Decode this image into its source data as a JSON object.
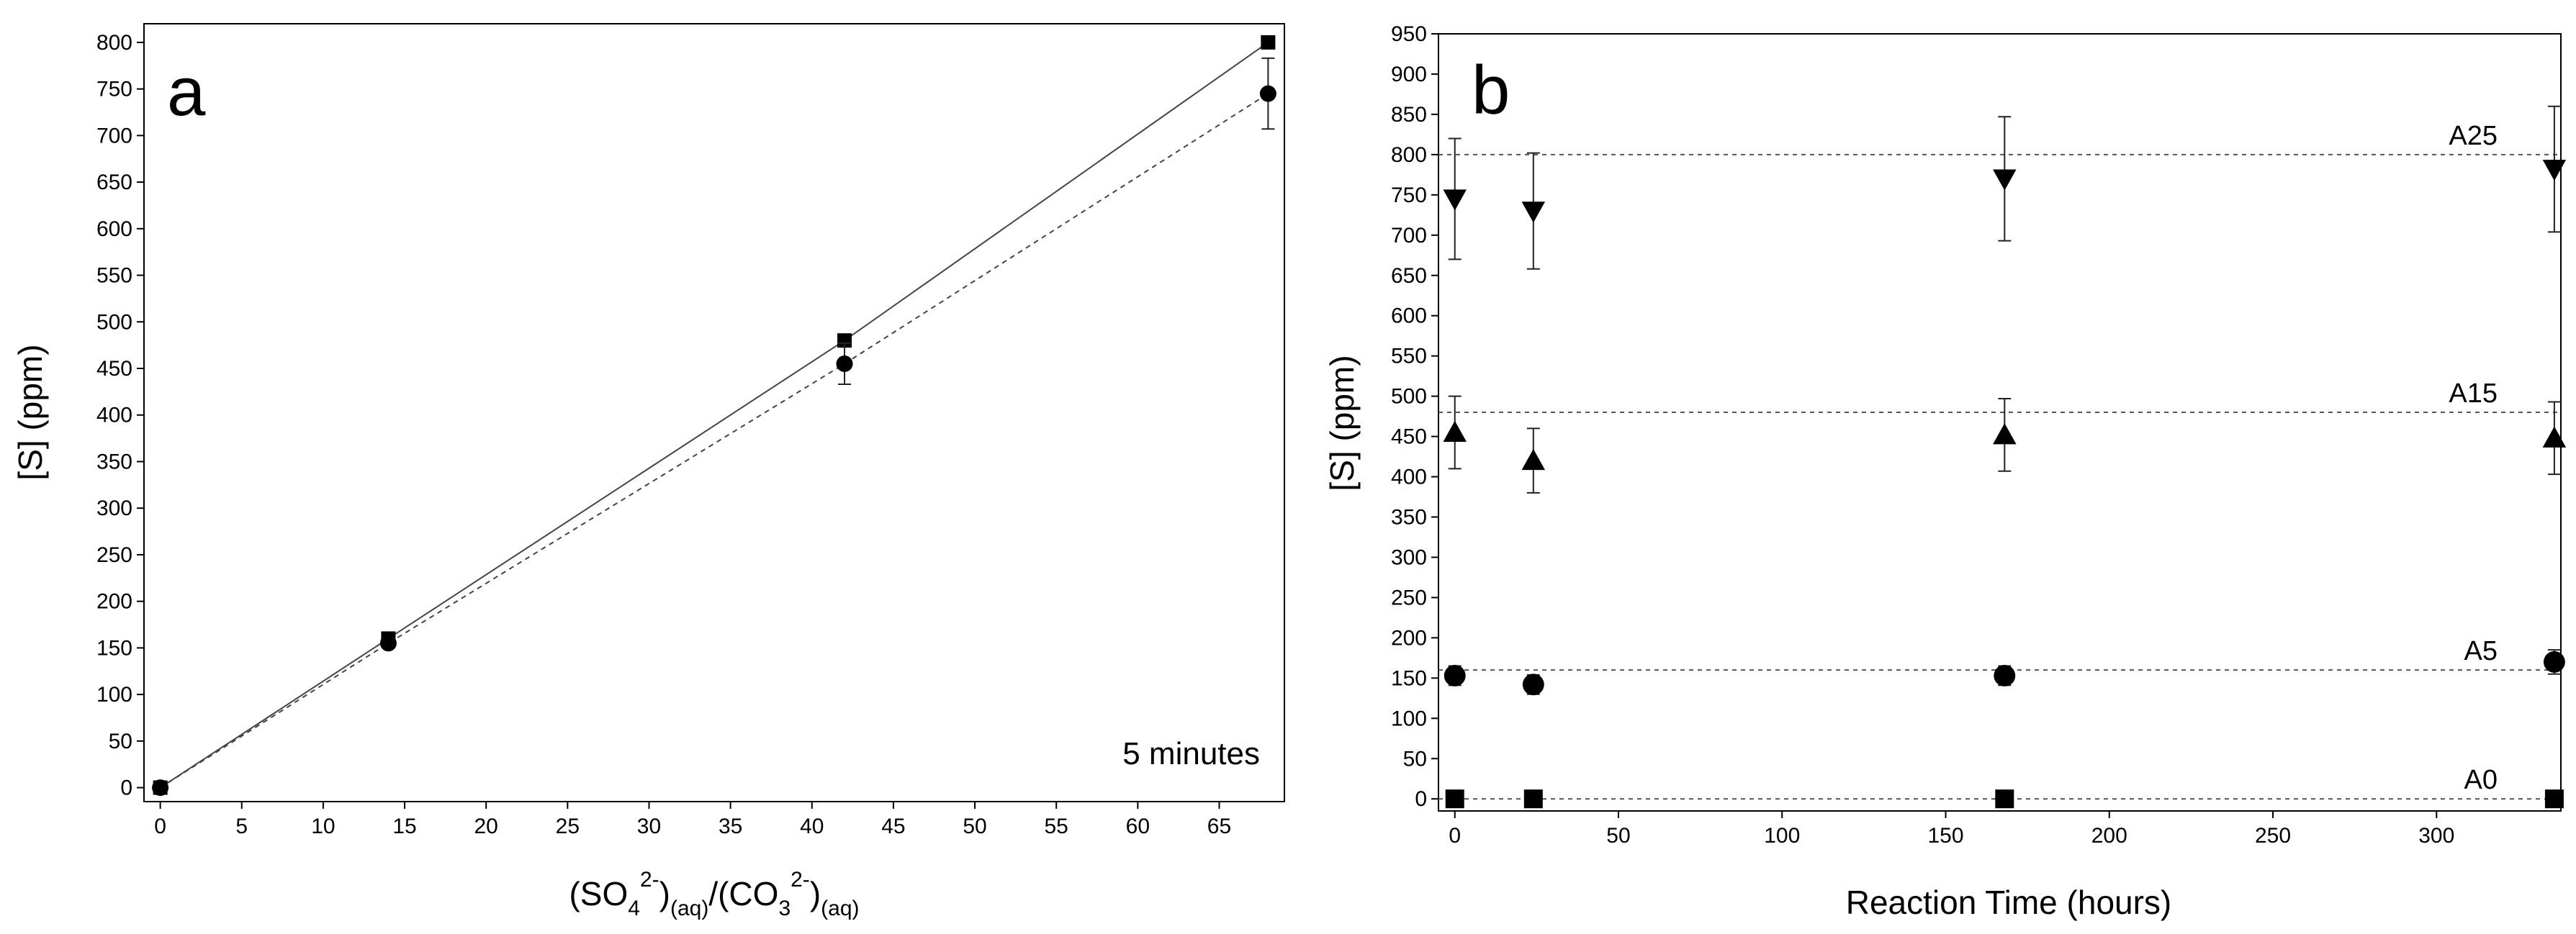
{
  "chart_data": [
    {
      "panel": "a",
      "type": "line",
      "annotation": "5 minutes",
      "xlabel": {
        "main": "(SO",
        "sub1": "4",
        "sup1": "2-",
        "sub2": "(aq)",
        "mid": ")",
        "slash": "/(CO",
        "sub3": "3",
        "sup2": "2-",
        "sub4": "(aq)"
      },
      "ylabel": "[S] (ppm)",
      "xlim": [
        -1,
        69
      ],
      "ylim": [
        -15,
        820
      ],
      "xticks": [
        0,
        5,
        10,
        15,
        20,
        25,
        30,
        35,
        40,
        45,
        50,
        55,
        60,
        65
      ],
      "yticks": [
        0,
        50,
        100,
        150,
        200,
        250,
        300,
        350,
        400,
        450,
        500,
        550,
        600,
        650,
        700,
        750,
        800
      ],
      "series": [
        {
          "name": "squares (solid line)",
          "marker": "square",
          "line": "solid",
          "x": [
            0,
            14,
            42,
            68
          ],
          "y": [
            0,
            160,
            480,
            800
          ],
          "err": [
            0,
            0,
            0,
            0
          ]
        },
        {
          "name": "circles (dashed line)",
          "marker": "circle",
          "line": "dashed",
          "x": [
            0,
            14,
            42,
            68
          ],
          "y": [
            0,
            155,
            455,
            745
          ],
          "err": [
            0,
            0,
            22,
            38
          ]
        }
      ]
    },
    {
      "panel": "b",
      "type": "scatter",
      "xlabel": "Reaction Time (hours)",
      "ylabel": "[S] (ppm)",
      "xlim": [
        -5,
        338
      ],
      "ylim": [
        -15,
        950
      ],
      "xticks": [
        0,
        50,
        100,
        150,
        200,
        250,
        300
      ],
      "yticks": [
        0,
        50,
        100,
        150,
        200,
        250,
        300,
        350,
        400,
        450,
        500,
        550,
        600,
        650,
        700,
        750,
        800,
        850,
        900,
        950
      ],
      "reference_lines": [
        {
          "label": "A25",
          "y": 800
        },
        {
          "label": "A15",
          "y": 480
        },
        {
          "label": "A5",
          "y": 160
        },
        {
          "label": "A0",
          "y": 0
        }
      ],
      "series": [
        {
          "name": "A25",
          "marker": "triangle-down",
          "x": [
            0,
            24,
            168,
            336
          ],
          "y": [
            745,
            730,
            770,
            782
          ],
          "err": [
            75,
            72,
            77,
            78
          ]
        },
        {
          "name": "A15",
          "marker": "triangle-up",
          "x": [
            0,
            24,
            168,
            336
          ],
          "y": [
            455,
            420,
            452,
            448
          ],
          "err": [
            45,
            40,
            45,
            45
          ]
        },
        {
          "name": "A5",
          "marker": "circle",
          "x": [
            0,
            24,
            168,
            336
          ],
          "y": [
            153,
            142,
            153,
            170
          ],
          "err": [
            12,
            12,
            12,
            15
          ]
        },
        {
          "name": "A0",
          "marker": "square",
          "x": [
            0,
            24,
            168,
            336
          ],
          "y": [
            0,
            0,
            0,
            0
          ],
          "err": [
            0,
            0,
            0,
            0
          ]
        }
      ]
    }
  ]
}
